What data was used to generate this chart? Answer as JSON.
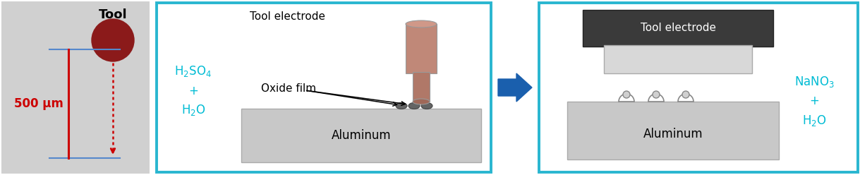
{
  "bg_color": "#d0d0d0",
  "cyan_border": "#29b6d0",
  "arrow_blue": "#1a5fad",
  "red_color": "#cc0000",
  "cyan_text": "#00bcd4",
  "tool_circle_color": "#8B1A1A",
  "tool_electrode_color_top": "#c08070",
  "tool_electrode_color_bot": "#b07060",
  "aluminum_color": "#c8c8c8",
  "aluminum_edge": "#aaaaaa",
  "dark_electrode_color": "#3a3a3a",
  "dark_electrode_edge": "#222222",
  "oxide_color": "#666666",
  "label_500um": "500 μm",
  "label_tool": "Tool",
  "label_tool_electrode": "Tool electrode",
  "label_oxide_film": "Oxide film",
  "label_aluminum1": "Aluminum",
  "label_aluminum2": "Aluminum"
}
